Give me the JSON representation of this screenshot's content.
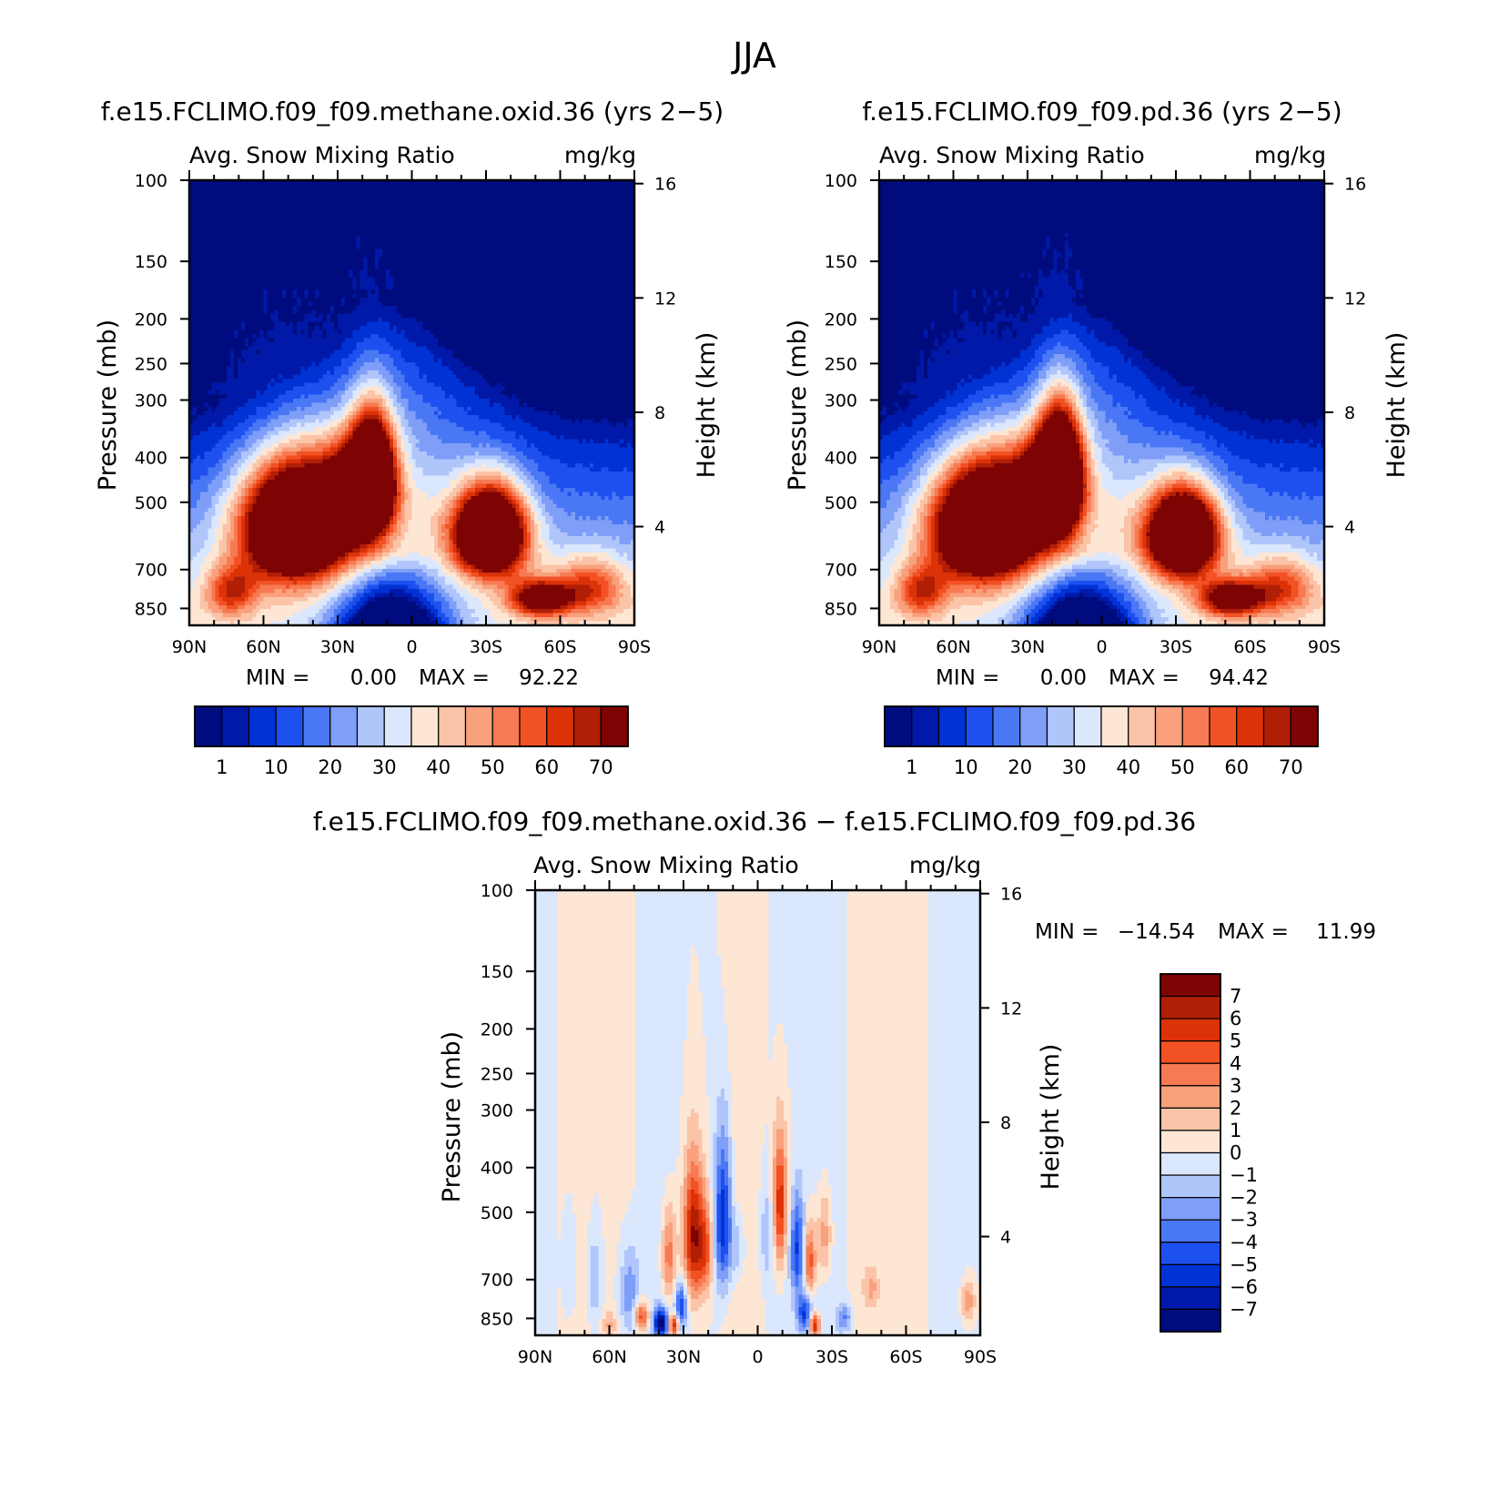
{
  "figure_title": "JJA",
  "chart_data": [
    {
      "id": "left",
      "type": "heatmap",
      "title": "f.e15.FCLIMO.f09_f09.methane.oxid.36 (yrs 2−5)",
      "subtitle_left": "Avg. Snow Mixing Ratio",
      "subtitle_right": "mg/kg",
      "ylabel": "Pressure (mb)",
      "ylabel_right": "Height (km)",
      "x_ticks": [
        "90N",
        "60N",
        "30N",
        "0",
        "30S",
        "60S",
        "90S"
      ],
      "y_ticks": [
        "100",
        "150",
        "200",
        "250",
        "300",
        "400",
        "500",
        "700",
        "850"
      ],
      "y_ticks_right": [
        "16",
        "12",
        "8",
        "4"
      ],
      "min_label": "MIN =",
      "min_value": "0.00",
      "max_label": "MAX =",
      "max_value": "92.22",
      "xlim": [
        90,
        -90
      ],
      "ylim": [
        100,
        925
      ],
      "colorbar_labels": [
        "1",
        "10",
        "20",
        "30",
        "40",
        "50",
        "60",
        "70"
      ],
      "colors": [
        "#000c7d",
        "#0019a8",
        "#0032d4",
        "#1e50f0",
        "#4a78f5",
        "#7f9ef8",
        "#b0c6fb",
        "#dbe7fd",
        "#fde6d4",
        "#fbc4a8",
        "#f9a07c",
        "#f77a52",
        "#f25124",
        "#dc3208",
        "#b01e06",
        "#7e0303"
      ],
      "blobs": [
        {
          "lat": 47,
          "p": 555,
          "rx": 22,
          "ry": 165,
          "amp": 100
        },
        {
          "lat": 16,
          "p": 440,
          "rx": 9,
          "ry": 130,
          "amp": 90
        },
        {
          "lat": 25,
          "p": 470,
          "rx": 12,
          "ry": 110,
          "amp": 40
        },
        {
          "lat": -32,
          "p": 580,
          "rx": 14,
          "ry": 125,
          "amp": 100
        },
        {
          "lat": -52,
          "p": 810,
          "rx": 12,
          "ry": 70,
          "amp": 55
        },
        {
          "lat": -72,
          "p": 760,
          "rx": 14,
          "ry": 110,
          "amp": 30
        },
        {
          "lat": 73,
          "p": 780,
          "rx": 10,
          "ry": 100,
          "amp": 30
        }
      ]
    },
    {
      "id": "right",
      "type": "heatmap",
      "title": "f.e15.FCLIMO.f09_f09.pd.36 (yrs 2−5)",
      "subtitle_left": "Avg. Snow Mixing Ratio",
      "subtitle_right": "mg/kg",
      "ylabel": "Pressure (mb)",
      "ylabel_right": "Height (km)",
      "x_ticks": [
        "90N",
        "60N",
        "30N",
        "0",
        "30S",
        "60S",
        "90S"
      ],
      "y_ticks": [
        "100",
        "150",
        "200",
        "250",
        "300",
        "400",
        "500",
        "700",
        "850"
      ],
      "y_ticks_right": [
        "16",
        "12",
        "8",
        "4"
      ],
      "min_label": "MIN =",
      "min_value": "0.00",
      "max_label": "MAX =",
      "max_value": "94.42",
      "xlim": [
        90,
        -90
      ],
      "ylim": [
        100,
        925
      ],
      "colorbar_labels": [
        "1",
        "10",
        "20",
        "30",
        "40",
        "50",
        "60",
        "70"
      ],
      "colors": [
        "#000c7d",
        "#0019a8",
        "#0032d4",
        "#1e50f0",
        "#4a78f5",
        "#7f9ef8",
        "#b0c6fb",
        "#dbe7fd",
        "#fde6d4",
        "#fbc4a8",
        "#f9a07c",
        "#f77a52",
        "#f25124",
        "#dc3208",
        "#b01e06",
        "#7e0303"
      ],
      "blobs": [
        {
          "lat": 47,
          "p": 555,
          "rx": 22,
          "ry": 165,
          "amp": 100
        },
        {
          "lat": 17,
          "p": 430,
          "rx": 9,
          "ry": 130,
          "amp": 95
        },
        {
          "lat": 25,
          "p": 470,
          "rx": 12,
          "ry": 110,
          "amp": 40
        },
        {
          "lat": -33,
          "p": 585,
          "rx": 14,
          "ry": 125,
          "amp": 100
        },
        {
          "lat": -52,
          "p": 810,
          "rx": 12,
          "ry": 70,
          "amp": 55
        },
        {
          "lat": -72,
          "p": 760,
          "rx": 14,
          "ry": 110,
          "amp": 30
        },
        {
          "lat": 73,
          "p": 780,
          "rx": 10,
          "ry": 100,
          "amp": 30
        }
      ]
    },
    {
      "id": "diff",
      "type": "heatmap",
      "title": "f.e15.FCLIMO.f09_f09.methane.oxid.36 − f.e15.FCLIMO.f09_f09.pd.36",
      "subtitle_left": "Avg. Snow Mixing Ratio",
      "subtitle_right": "mg/kg",
      "ylabel": "Pressure (mb)",
      "ylabel_right": "Height (km)",
      "x_ticks": [
        "90N",
        "60N",
        "30N",
        "0",
        "30S",
        "60S",
        "90S"
      ],
      "y_ticks": [
        "100",
        "150",
        "200",
        "250",
        "300",
        "400",
        "500",
        "700",
        "850"
      ],
      "y_ticks_right": [
        "16",
        "12",
        "8",
        "4"
      ],
      "min_label": "MIN =",
      "min_value": "−14.54",
      "max_label": "MAX =",
      "max_value": "11.99",
      "xlim": [
        90,
        -90
      ],
      "ylim": [
        100,
        925
      ],
      "colorbar_labels": [
        "7",
        "6",
        "5",
        "4",
        "3",
        "2",
        "1",
        "0",
        "−1",
        "−2",
        "−3",
        "−4",
        "−5",
        "−6",
        "−7"
      ],
      "colors": [
        "#7e0303",
        "#b01e06",
        "#dc3208",
        "#f25124",
        "#f77a52",
        "#f9a07c",
        "#fbc4a8",
        "#fde6d4",
        "#dbe7fd",
        "#b0c6fb",
        "#7f9ef8",
        "#4a78f5",
        "#1e50f0",
        "#0032d4",
        "#0019a8",
        "#000c7d"
      ],
      "blobs": [
        {
          "lat": 26,
          "p": 560,
          "rx": 4,
          "ry": 190,
          "amp": 7
        },
        {
          "lat": 21,
          "p": 600,
          "rx": 3,
          "ry": 140,
          "amp": 4
        },
        {
          "lat": 14,
          "p": 520,
          "rx": 3.5,
          "ry": 200,
          "amp": -6
        },
        {
          "lat": 36,
          "p": 620,
          "rx": 3,
          "ry": 150,
          "amp": 4
        },
        {
          "lat": 31,
          "p": 800,
          "rx": 2.5,
          "ry": 90,
          "amp": -5
        },
        {
          "lat": 39,
          "p": 870,
          "rx": 3,
          "ry": 60,
          "amp": -8
        },
        {
          "lat": 34,
          "p": 880,
          "rx": 2,
          "ry": 50,
          "amp": 7
        },
        {
          "lat": 47,
          "p": 840,
          "rx": 3,
          "ry": 60,
          "amp": 5
        },
        {
          "lat": 52,
          "p": 750,
          "rx": 4,
          "ry": 170,
          "amp": -3
        },
        {
          "lat": 8,
          "p": 600,
          "rx": 3,
          "ry": 100,
          "amp": -2
        },
        {
          "lat": -9,
          "p": 480,
          "rx": 3,
          "ry": 160,
          "amp": 6
        },
        {
          "lat": -4,
          "p": 560,
          "rx": 3,
          "ry": 140,
          "amp": -2
        },
        {
          "lat": -16,
          "p": 600,
          "rx": 3,
          "ry": 150,
          "amp": -5
        },
        {
          "lat": -21,
          "p": 640,
          "rx": 2.5,
          "ry": 120,
          "amp": 5
        },
        {
          "lat": -19,
          "p": 830,
          "rx": 3,
          "ry": 80,
          "amp": -5
        },
        {
          "lat": -23,
          "p": 880,
          "rx": 2,
          "ry": 50,
          "amp": 7
        },
        {
          "lat": -27,
          "p": 560,
          "rx": 3,
          "ry": 130,
          "amp": 3
        },
        {
          "lat": -35,
          "p": 850,
          "rx": 3,
          "ry": 60,
          "amp": -3
        },
        {
          "lat": -46,
          "p": 730,
          "rx": 3,
          "ry": 70,
          "amp": 2
        },
        {
          "lat": 66,
          "p": 700,
          "rx": 3,
          "ry": 180,
          "amp": -2
        },
        {
          "lat": 76,
          "p": 650,
          "rx": 3,
          "ry": 200,
          "amp": -1.5
        },
        {
          "lat": 60,
          "p": 880,
          "rx": 3,
          "ry": 60,
          "amp": 2
        },
        {
          "lat": -85,
          "p": 780,
          "rx": 3,
          "ry": 80,
          "amp": 3
        }
      ]
    }
  ]
}
